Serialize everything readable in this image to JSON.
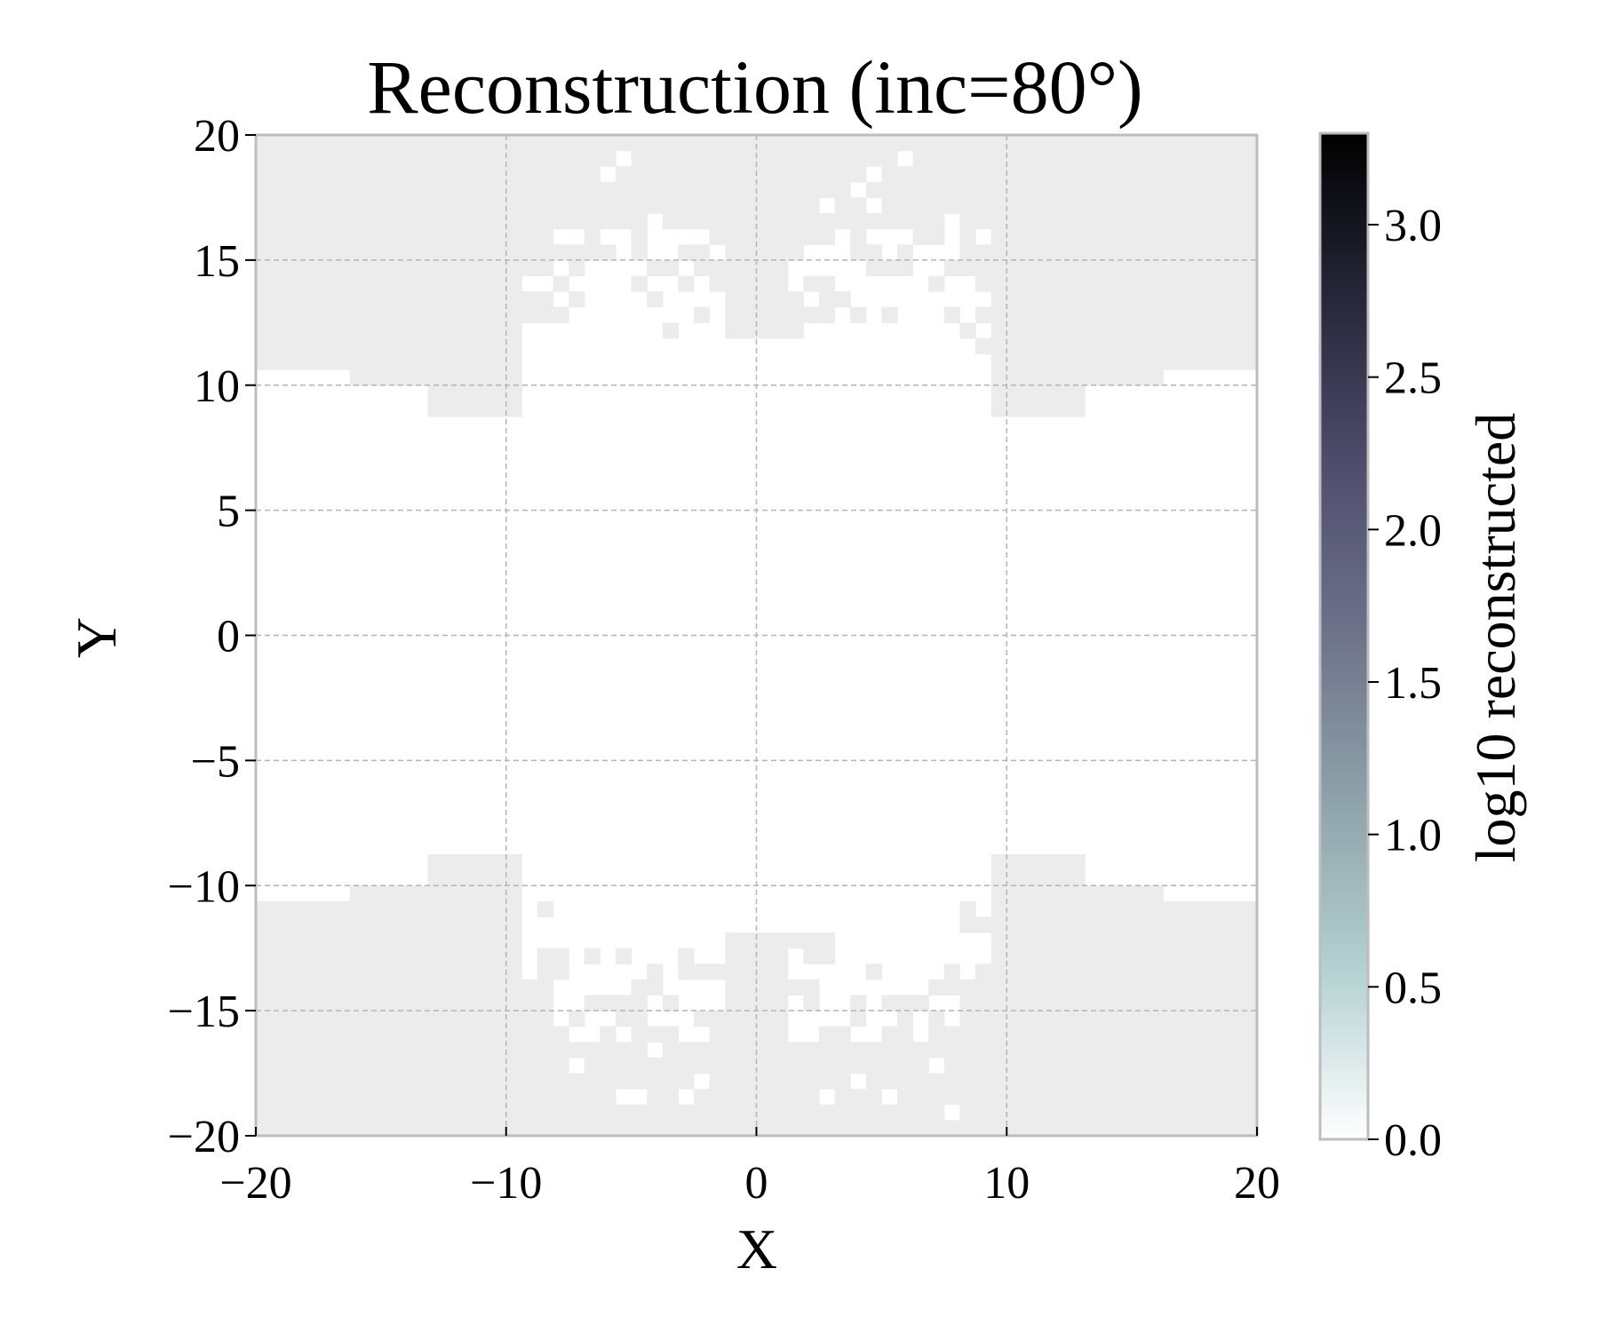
{
  "chart_data": {
    "type": "heatmap",
    "title": "Reconstruction (inc=80°)",
    "xlabel": "X",
    "ylabel": "Y",
    "xlim": [
      -20,
      20
    ],
    "ylim": [
      -20,
      20
    ],
    "x_ticks": [
      -20,
      -10,
      0,
      10,
      20
    ],
    "x_tick_labels": [
      "−20",
      "−10",
      "0",
      "10",
      "20"
    ],
    "y_ticks": [
      20,
      15,
      10,
      5,
      0,
      -5,
      -10,
      -15,
      -20
    ],
    "y_tick_labels": [
      "20",
      "15",
      "10",
      "5",
      "0",
      "−5",
      "−10",
      "−15",
      "−20"
    ],
    "grid": true,
    "colormap": "bone_r",
    "colormap_stops": [
      "#ffffff",
      "#b5d1d1",
      "#8fa3ab",
      "#6e7389",
      "#4f4e6e",
      "#27273a",
      "#000000"
    ],
    "colorbar": {
      "label": "log10 reconstructed",
      "range": [
        0.0,
        3.3
      ],
      "ticks": [
        0.0,
        0.5,
        1.0,
        1.5,
        2.0,
        2.5,
        3.0
      ],
      "tick_labels": [
        "0.0",
        "0.5",
        "1.0",
        "1.5",
        "2.0",
        "2.5",
        "3.0"
      ]
    },
    "grid_resolution": 64,
    "cell_value": 0.03,
    "cell_color": "#ececec",
    "description_of_values": "Cells with low reconstructed values (~0.03 in log10) fill the top band (|y| above ~10-11 near the edges, above ~15 in the center) and the mirrored bottom band; the central region is empty (white)."
  }
}
